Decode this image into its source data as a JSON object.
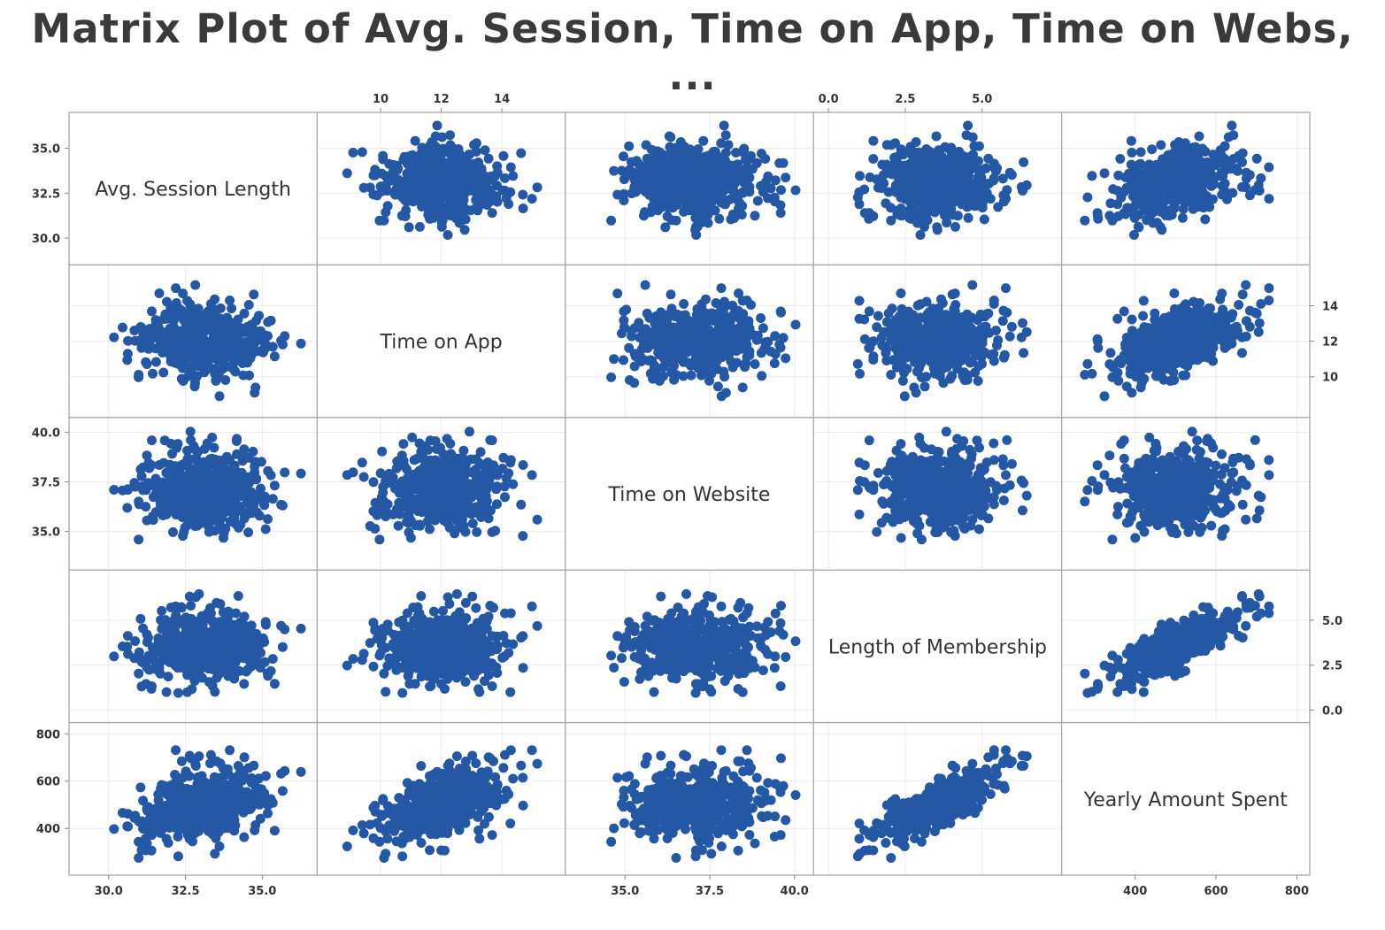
{
  "chart_data": {
    "type": "scatter",
    "title": "Matrix Plot of Avg. Session, Time on App, Time on Webs, ...",
    "grid": true,
    "point_color": "#2457a4",
    "n_points": 500,
    "variables": [
      {
        "name": "Avg. Session Length",
        "range": [
          29.0,
          36.5
        ],
        "ticks": [
          30.0,
          32.5,
          35.0
        ],
        "tick_labels": [
          "30.0",
          "32.5",
          "35.0"
        ],
        "mean": 33.05,
        "sd": 1.0
      },
      {
        "name": "Time on App",
        "range": [
          8.2,
          15.8
        ],
        "ticks": [
          10,
          12,
          14
        ],
        "tick_labels": [
          "10",
          "12",
          "14"
        ],
        "mean": 12.05,
        "sd": 1.0
      },
      {
        "name": "Time on Website",
        "range": [
          33.5,
          40.3
        ],
        "ticks": [
          35.0,
          37.5,
          40.0
        ],
        "tick_labels": [
          "35.0",
          "37.5",
          "40.0"
        ],
        "mean": 37.05,
        "sd": 1.0
      },
      {
        "name": "Length of Membership",
        "range": [
          -0.2,
          7.3
        ],
        "ticks": [
          0.0,
          2.5,
          5.0
        ],
        "tick_labels": [
          "0.0",
          "2.5",
          "5.0"
        ],
        "mean": 3.5,
        "sd": 1.0
      },
      {
        "name": "Yearly Amount Spent",
        "range": [
          240,
          810
        ],
        "ticks": [
          400,
          600,
          800
        ],
        "tick_labels": [
          "400",
          "600",
          "800"
        ],
        "mean": 499,
        "sd": 79
      }
    ],
    "correlations": [
      [
        1.0,
        -0.03,
        -0.03,
        0.06,
        0.36
      ],
      [
        -0.03,
        1.0,
        0.08,
        0.03,
        0.5
      ],
      [
        -0.03,
        0.08,
        1.0,
        -0.05,
        0.0
      ],
      [
        0.06,
        0.03,
        -0.05,
        1.0,
        0.81
      ],
      [
        0.36,
        0.5,
        0.0,
        0.81,
        1.0
      ]
    ],
    "axes": {
      "top": [
        1,
        3
      ],
      "bottom": [
        0,
        2,
        4
      ],
      "left": [
        0,
        2,
        4
      ],
      "right": [
        1,
        3
      ]
    }
  }
}
